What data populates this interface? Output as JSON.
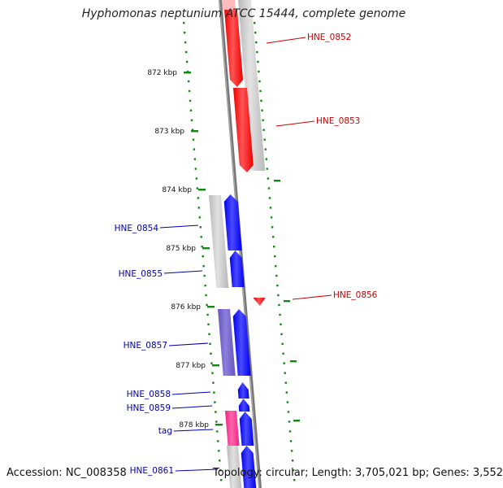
{
  "title": "Hyphomonas neptunium ATCC 15444, complete genome",
  "footer": {
    "accession": "Accession: NC_008358",
    "stats": "Topology: circular; Length: 3,705,021 bp; Genes: 3,552"
  },
  "colors": {
    "forward_gene": "#0000ee",
    "reverse_gene": "#ee0000",
    "trna_gene": "#ee2288",
    "selected_gene": "#6655bb",
    "cds_track": "#b8b8b8",
    "backbone": "#777777",
    "scale_ticks": "#118811",
    "forward_label": "#0000aa",
    "reverse_label": "#cc0000"
  },
  "scale_labels": [
    {
      "label": "872 kbp",
      "kbp": 872
    },
    {
      "label": "873 kbp",
      "kbp": 873
    },
    {
      "label": "874 kbp",
      "kbp": 874
    },
    {
      "label": "875 kbp",
      "kbp": 875
    },
    {
      "label": "876 kbp",
      "kbp": 876
    },
    {
      "label": "877 kbp",
      "kbp": 877
    },
    {
      "label": "878 kbp",
      "kbp": 878
    }
  ],
  "gene_labels": [
    {
      "name": "HNE_0852",
      "strand": "reverse"
    },
    {
      "name": "HNE_0853",
      "strand": "reverse"
    },
    {
      "name": "HNE_0854",
      "strand": "forward"
    },
    {
      "name": "HNE_0855",
      "strand": "forward"
    },
    {
      "name": "HNE_0856",
      "strand": "reverse"
    },
    {
      "name": "HNE_0857",
      "strand": "forward"
    },
    {
      "name": "HNE_0858",
      "strand": "forward"
    },
    {
      "name": "HNE_0859",
      "strand": "forward"
    },
    {
      "name": "tag",
      "strand": "forward"
    },
    {
      "name": "HNE_0861",
      "strand": "forward"
    }
  ]
}
